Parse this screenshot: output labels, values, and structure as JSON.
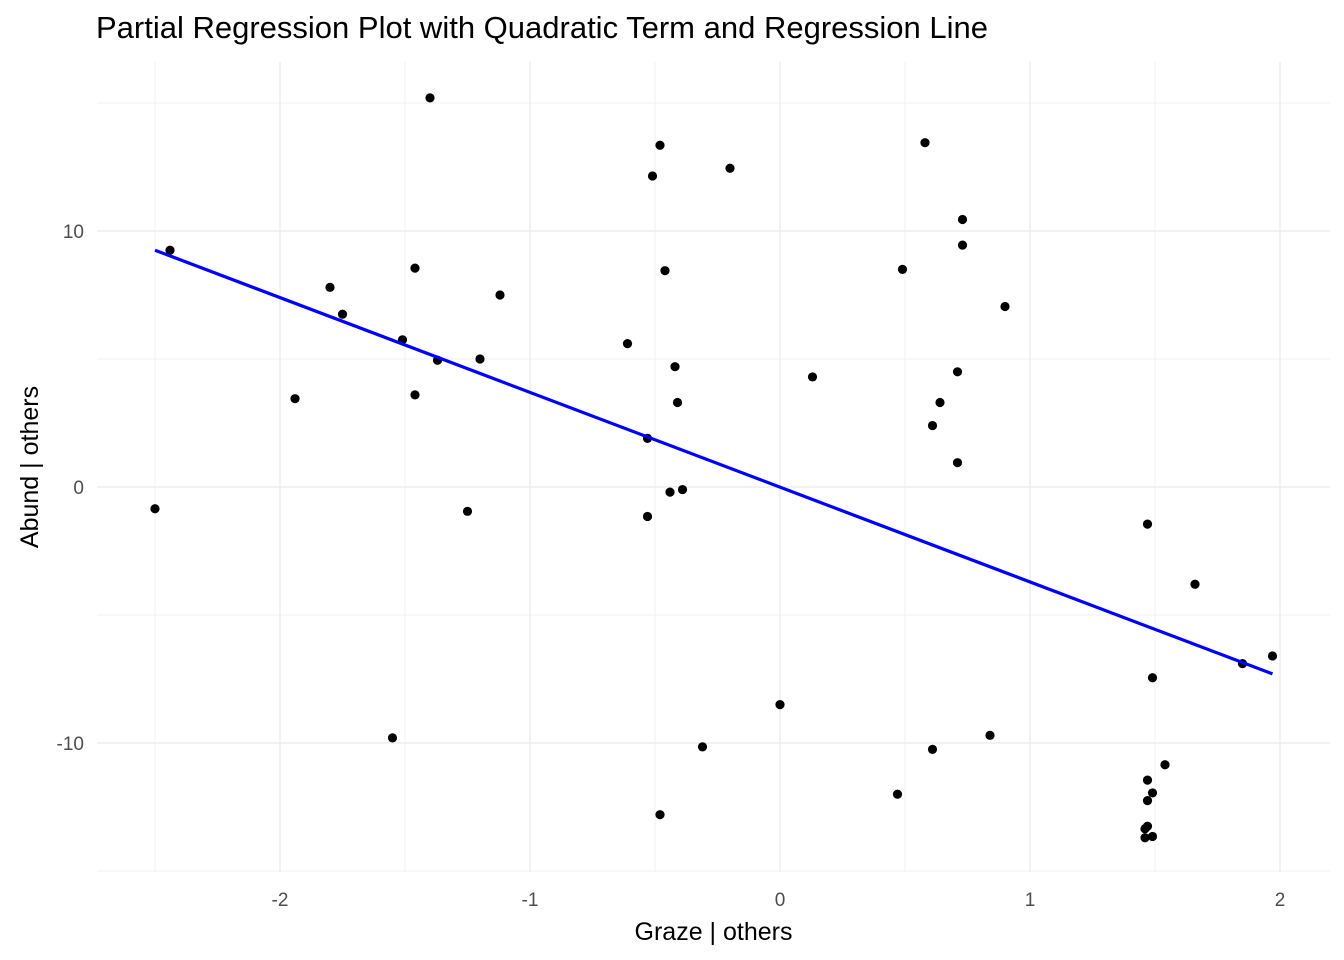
{
  "chart_data": {
    "type": "scatter",
    "title": "Partial Regression Plot with Quadratic Term and Regression Line",
    "xlabel": "Graze | others",
    "ylabel": "Abund | others",
    "xlim": [
      -2.5,
      1.98
    ],
    "ylim": [
      -15,
      15
    ],
    "grid": true,
    "x_ticks": [
      -2,
      -1,
      0,
      1,
      2
    ],
    "x_tick_labels": [
      "-2",
      "-1",
      "0",
      "1",
      "2"
    ],
    "y_ticks": [
      -10,
      0,
      10
    ],
    "y_tick_labels": [
      "-10",
      "0",
      "10"
    ],
    "series": [
      {
        "points": [
          [
            -2.5,
            -0.85
          ],
          [
            -2.44,
            9.25
          ],
          [
            -1.94,
            3.45
          ],
          [
            -1.8,
            7.8
          ],
          [
            -1.75,
            6.75
          ],
          [
            -1.55,
            -9.8
          ],
          [
            -1.51,
            5.75
          ],
          [
            -1.46,
            8.55
          ],
          [
            -1.46,
            3.6
          ],
          [
            -1.4,
            15.2
          ],
          [
            -1.37,
            4.95
          ],
          [
            -1.25,
            -0.95
          ],
          [
            -1.2,
            5.0
          ],
          [
            -1.12,
            7.5
          ],
          [
            -0.61,
            5.6
          ],
          [
            -0.53,
            1.9
          ],
          [
            -0.53,
            -1.15
          ],
          [
            -0.51,
            12.15
          ],
          [
            -0.48,
            13.35
          ],
          [
            -0.48,
            -12.8
          ],
          [
            -0.46,
            8.45
          ],
          [
            -0.44,
            -0.2
          ],
          [
            -0.42,
            4.7
          ],
          [
            -0.41,
            3.3
          ],
          [
            -0.39,
            -0.1
          ],
          [
            -0.31,
            -10.15
          ],
          [
            -0.2,
            12.45
          ],
          [
            0.0,
            -8.5
          ],
          [
            0.13,
            4.3
          ],
          [
            0.47,
            -12.0
          ],
          [
            0.49,
            8.5
          ],
          [
            0.58,
            13.45
          ],
          [
            0.61,
            2.4
          ],
          [
            0.61,
            -10.25
          ],
          [
            0.64,
            3.3
          ],
          [
            0.71,
            4.5
          ],
          [
            0.71,
            0.95
          ],
          [
            0.73,
            10.45
          ],
          [
            0.73,
            9.45
          ],
          [
            0.84,
            -9.7
          ],
          [
            0.9,
            7.05
          ],
          [
            1.46,
            -13.7
          ],
          [
            1.46,
            -13.35
          ],
          [
            1.47,
            -13.25
          ],
          [
            1.47,
            -12.25
          ],
          [
            1.47,
            -11.45
          ],
          [
            1.47,
            -1.45
          ],
          [
            1.49,
            -7.45
          ],
          [
            1.49,
            -11.95
          ],
          [
            1.49,
            -13.65
          ],
          [
            1.54,
            -10.85
          ],
          [
            1.66,
            -3.8
          ],
          [
            1.85,
            -6.9
          ],
          [
            1.97,
            -6.6
          ]
        ],
        "color": "#000000"
      }
    ],
    "regression_line": {
      "x_start": -2.5,
      "y_start": 9.25,
      "x_end": 1.97,
      "y_end": -7.3,
      "color": "#0000ff"
    }
  }
}
